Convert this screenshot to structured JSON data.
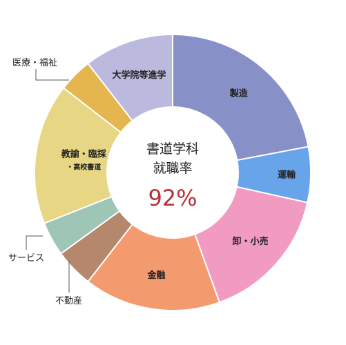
{
  "chart_data": {
    "type": "pie",
    "variant": "donut",
    "center": {
      "line1": "書道学科",
      "line2": "就職率",
      "value": "92%"
    },
    "slices": [
      {
        "label": "製造",
        "sublabel": "",
        "value": 22,
        "color": "#8791c8"
      },
      {
        "label": "運輸",
        "sublabel": "",
        "value": 6.5,
        "color": "#67a4e9"
      },
      {
        "label": "卸・小売",
        "sublabel": "",
        "value": 16,
        "color": "#f29bc2"
      },
      {
        "label": "金融",
        "sublabel": "",
        "value": 16,
        "color": "#f49a6f"
      },
      {
        "label": "不動産",
        "sublabel": "",
        "value": 4.5,
        "color": "#b5876d"
      },
      {
        "label": "サービス",
        "sublabel": "",
        "value": 4,
        "color": "#9ec5b6"
      },
      {
        "label": "教諭・臨採",
        "sublabel": "・高校書道",
        "value": 16.5,
        "color": "#e7d683"
      },
      {
        "label": "医療・福祉",
        "sublabel": "",
        "value": 4,
        "color": "#e6b64e"
      },
      {
        "label": "大学院等進学",
        "sublabel": "",
        "value": 10.5,
        "color": "#bcb9df"
      }
    ]
  }
}
